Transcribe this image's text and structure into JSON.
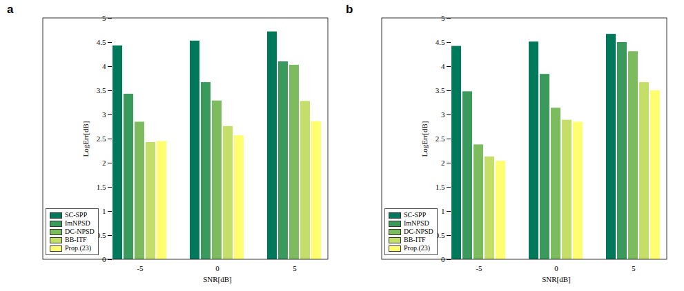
{
  "chart_data": [
    {
      "type": "bar",
      "title": "a",
      "categories": [
        "-5",
        "0",
        "5"
      ],
      "x_label": "SNR[dB]",
      "y_label": "LogErr[dB]",
      "ylim": [
        0,
        5
      ],
      "yticks": [
        0,
        0.5,
        1,
        1.5,
        2,
        2.5,
        3,
        3.5,
        4,
        4.5,
        5
      ],
      "legend": "lower left",
      "series": [
        {
          "name": "SC-SPP",
          "color": "#00785a",
          "values": [
            4.43,
            4.53,
            4.72
          ]
        },
        {
          "name": "ImNPSD",
          "color": "#3a9a5c",
          "values": [
            3.43,
            3.67,
            4.1
          ]
        },
        {
          "name": "DC-NPSD",
          "color": "#7dbb5f",
          "values": [
            2.85,
            3.29,
            4.03
          ]
        },
        {
          "name": "BB-ITF",
          "color": "#c3df6a",
          "values": [
            2.43,
            2.76,
            3.28
          ]
        },
        {
          "name": "Prop.(23)",
          "color": "#ffff70",
          "values": [
            2.45,
            2.57,
            2.86
          ]
        }
      ]
    },
    {
      "type": "bar",
      "title": "b",
      "categories": [
        "-5",
        "0",
        "5"
      ],
      "x_label": "SNR[dB]",
      "y_label": "LogErr[dB]",
      "ylim": [
        0,
        5
      ],
      "yticks": [
        0,
        0.5,
        1,
        1.5,
        2,
        2.5,
        3,
        3.5,
        4,
        4.5,
        5
      ],
      "legend": "lower left",
      "series": [
        {
          "name": "SC-SPP",
          "color": "#00785a",
          "values": [
            4.42,
            4.51,
            4.67
          ]
        },
        {
          "name": "ImNPSD",
          "color": "#3a9a5c",
          "values": [
            3.48,
            3.84,
            4.5
          ]
        },
        {
          "name": "DC-NPSD",
          "color": "#7dbb5f",
          "values": [
            2.38,
            3.14,
            4.31
          ]
        },
        {
          "name": "BB-ITF",
          "color": "#c3df6a",
          "values": [
            2.13,
            2.89,
            3.67
          ]
        },
        {
          "name": "Prop.(23)",
          "color": "#ffff70",
          "values": [
            2.04,
            2.85,
            3.5
          ]
        }
      ]
    }
  ]
}
